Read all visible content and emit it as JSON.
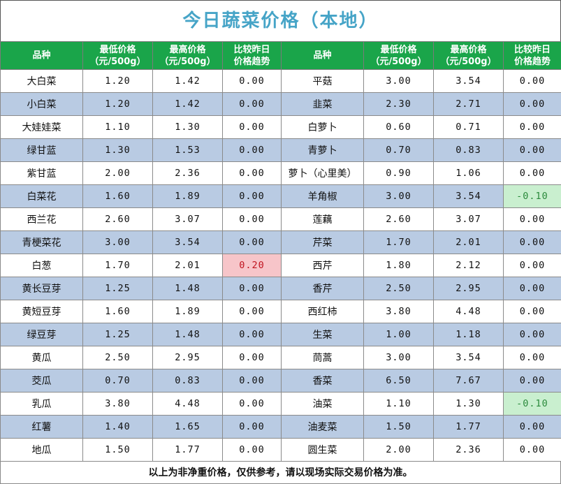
{
  "title": "今日蔬菜价格（本地）",
  "headers": {
    "name": "品种",
    "low_line1": "最低价格",
    "low_line2": "（元/500g）",
    "high_line1": "最高价格",
    "high_line2": "（元/500g）",
    "trend_line1": "比较昨日",
    "trend_line2": "价格趋势"
  },
  "colors": {
    "header_bg": "#1aa54a",
    "title_color": "#46a4c7",
    "alt_row_bg": "#b9cbe3",
    "up_bg": "#f7c5c9",
    "down_bg": "#c9efcf"
  },
  "rows": [
    {
      "l": {
        "name": "大白菜",
        "low": "1.20",
        "high": "1.42",
        "trend": "0.00"
      },
      "r": {
        "name": "平菇",
        "low": "3.00",
        "high": "3.54",
        "trend": "0.00"
      }
    },
    {
      "l": {
        "name": "小白菜",
        "low": "1.20",
        "high": "1.42",
        "trend": "0.00"
      },
      "r": {
        "name": "韭菜",
        "low": "2.30",
        "high": "2.71",
        "trend": "0.00"
      }
    },
    {
      "l": {
        "name": "大娃娃菜",
        "low": "1.10",
        "high": "1.30",
        "trend": "0.00"
      },
      "r": {
        "name": "白萝卜",
        "low": "0.60",
        "high": "0.71",
        "trend": "0.00"
      }
    },
    {
      "l": {
        "name": "绿甘蓝",
        "low": "1.30",
        "high": "1.53",
        "trend": "0.00"
      },
      "r": {
        "name": "青萝卜",
        "low": "0.70",
        "high": "0.83",
        "trend": "0.00"
      }
    },
    {
      "l": {
        "name": "紫甘蓝",
        "low": "2.00",
        "high": "2.36",
        "trend": "0.00"
      },
      "r": {
        "name": "萝卜（心里美）",
        "low": "0.90",
        "high": "1.06",
        "trend": "0.00"
      }
    },
    {
      "l": {
        "name": "白菜花",
        "low": "1.60",
        "high": "1.89",
        "trend": "0.00"
      },
      "r": {
        "name": "羊角椒",
        "low": "3.00",
        "high": "3.54",
        "trend": "-0.10"
      }
    },
    {
      "l": {
        "name": "西兰花",
        "low": "2.60",
        "high": "3.07",
        "trend": "0.00"
      },
      "r": {
        "name": "莲藕",
        "low": "2.60",
        "high": "3.07",
        "trend": "0.00"
      }
    },
    {
      "l": {
        "name": "青梗菜花",
        "low": "3.00",
        "high": "3.54",
        "trend": "0.00"
      },
      "r": {
        "name": "芹菜",
        "low": "1.70",
        "high": "2.01",
        "trend": "0.00"
      }
    },
    {
      "l": {
        "name": "白葱",
        "low": "1.70",
        "high": "2.01",
        "trend": "0.20"
      },
      "r": {
        "name": "西芹",
        "low": "1.80",
        "high": "2.12",
        "trend": "0.00"
      }
    },
    {
      "l": {
        "name": "黄长豆芽",
        "low": "1.25",
        "high": "1.48",
        "trend": "0.00"
      },
      "r": {
        "name": "香芹",
        "low": "2.50",
        "high": "2.95",
        "trend": "0.00"
      }
    },
    {
      "l": {
        "name": "黄短豆芽",
        "low": "1.60",
        "high": "1.89",
        "trend": "0.00"
      },
      "r": {
        "name": "西红柿",
        "low": "3.80",
        "high": "4.48",
        "trend": "0.00"
      }
    },
    {
      "l": {
        "name": "绿豆芽",
        "low": "1.25",
        "high": "1.48",
        "trend": "0.00"
      },
      "r": {
        "name": "生菜",
        "low": "1.00",
        "high": "1.18",
        "trend": "0.00"
      }
    },
    {
      "l": {
        "name": "黄瓜",
        "low": "2.50",
        "high": "2.95",
        "trend": "0.00"
      },
      "r": {
        "name": "茼蒿",
        "low": "3.00",
        "high": "3.54",
        "trend": "0.00"
      }
    },
    {
      "l": {
        "name": "茭瓜",
        "low": "0.70",
        "high": "0.83",
        "trend": "0.00"
      },
      "r": {
        "name": "香菜",
        "low": "6.50",
        "high": "7.67",
        "trend": "0.00"
      }
    },
    {
      "l": {
        "name": "乳瓜",
        "low": "3.80",
        "high": "4.48",
        "trend": "0.00"
      },
      "r": {
        "name": "油菜",
        "low": "1.10",
        "high": "1.30",
        "trend": "-0.10"
      }
    },
    {
      "l": {
        "name": "红薯",
        "low": "1.40",
        "high": "1.65",
        "trend": "0.00"
      },
      "r": {
        "name": "油麦菜",
        "low": "1.50",
        "high": "1.77",
        "trend": "0.00"
      }
    },
    {
      "l": {
        "name": "地瓜",
        "low": "1.50",
        "high": "1.77",
        "trend": "0.00"
      },
      "r": {
        "name": "圆生菜",
        "low": "2.00",
        "high": "2.36",
        "trend": "0.00"
      }
    }
  ],
  "footer": "以上为非净重价格，仅供参考，请以现场实际交易价格为准。"
}
